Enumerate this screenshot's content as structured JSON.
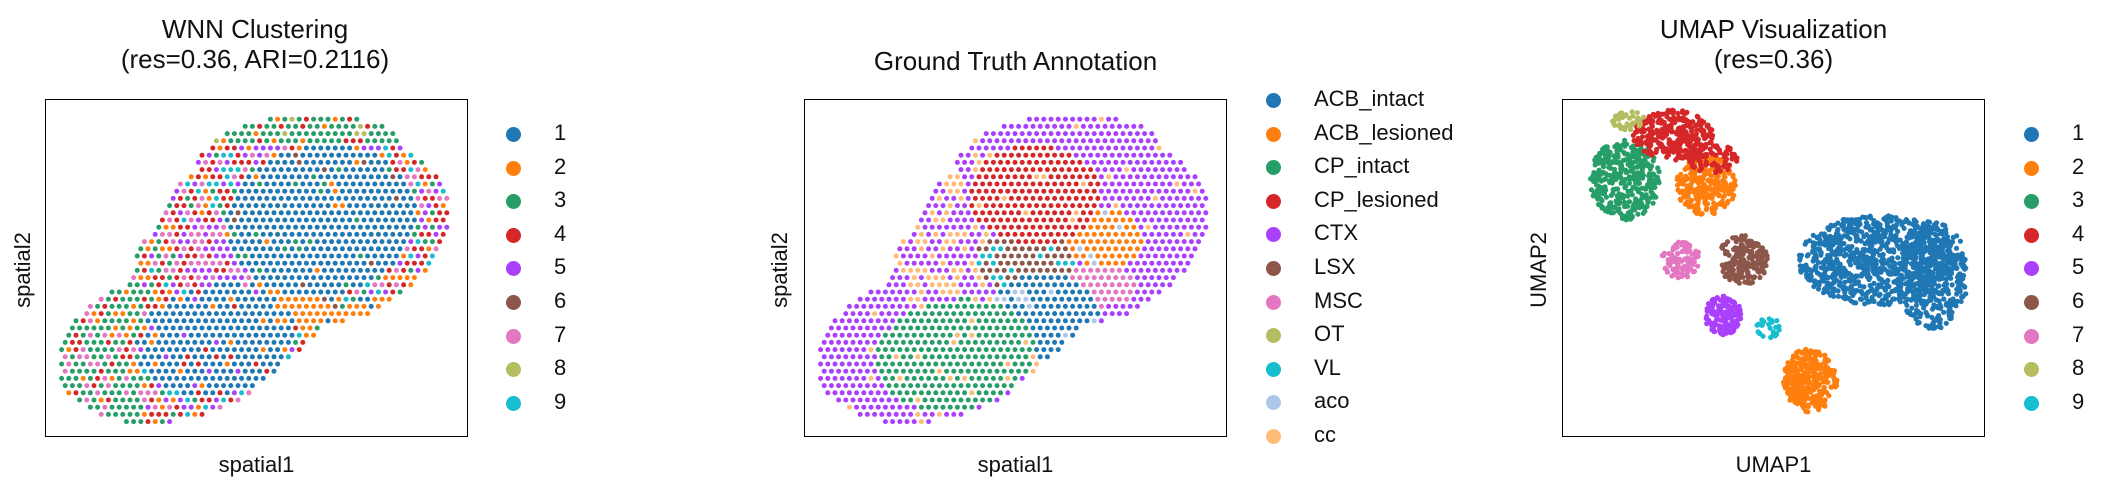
{
  "palette": {
    "c1": "#1f77b4",
    "c2": "#ff7f0e",
    "c3": "#279e68",
    "c4": "#d62728",
    "c5": "#aa40fc",
    "c6": "#8c564b",
    "c7": "#e377c2",
    "c8": "#b5bd61",
    "c9": "#17becf",
    "aco": "#aec7e8",
    "cc": "#ffbb78"
  },
  "chart_data": [
    {
      "type": "scatter",
      "title": "WNN Clustering\n(res=0.36, ARI=0.2116)",
      "xlabel": "spatial1",
      "ylabel": "spatial2",
      "legend_title": "",
      "legend_position": "right",
      "grid": false,
      "categories": [
        "1",
        "2",
        "3",
        "4",
        "5",
        "6",
        "7",
        "8",
        "9"
      ],
      "colors": [
        "#1f77b4",
        "#ff7f0e",
        "#279e68",
        "#d62728",
        "#aa40fc",
        "#8c564b",
        "#e377c2",
        "#b5bd61",
        "#17becf"
      ]
    },
    {
      "type": "scatter",
      "title": "Ground Truth Annotation",
      "xlabel": "spatial1",
      "ylabel": "spatial2",
      "legend_position": "right",
      "grid": false,
      "categories": [
        "ACB_intact",
        "ACB_lesioned",
        "CP_intact",
        "CP_lesioned",
        "CTX",
        "LSX",
        "MSC",
        "OT",
        "VL",
        "aco",
        "cc"
      ],
      "colors": [
        "#1f77b4",
        "#ff7f0e",
        "#279e68",
        "#d62728",
        "#aa40fc",
        "#8c564b",
        "#e377c2",
        "#b5bd61",
        "#17becf",
        "#aec7e8",
        "#ffbb78"
      ]
    },
    {
      "type": "scatter",
      "title": "UMAP Visualization\n(res=0.36)",
      "xlabel": "UMAP1",
      "ylabel": "UMAP2",
      "legend_position": "right",
      "grid": false,
      "categories": [
        "1",
        "2",
        "3",
        "4",
        "5",
        "6",
        "7",
        "8",
        "9"
      ],
      "colors": [
        "#1f77b4",
        "#ff7f0e",
        "#279e68",
        "#d62728",
        "#aa40fc",
        "#8c564b",
        "#e377c2",
        "#b5bd61",
        "#17becf"
      ]
    }
  ]
}
